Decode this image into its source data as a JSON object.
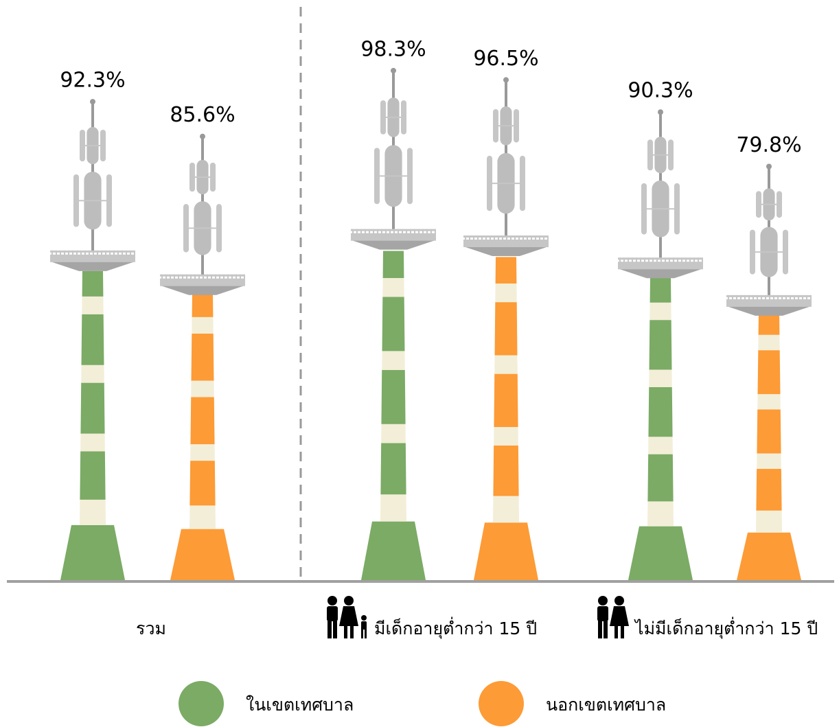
{
  "chart_data": {
    "type": "bar",
    "categories": [
      "รวม",
      "มีเด็กอายุต่ำกว่า 15 ปี",
      "ไม่มีเด็กอายุต่ำกว่า 15 ปี"
    ],
    "series": [
      {
        "name": "ในเขตเทศบาล",
        "color": "#7bab65",
        "values": [
          92.3,
          98.3,
          90.3
        ],
        "value_labels": [
          "92.3%",
          "98.3%",
          "90.3%"
        ]
      },
      {
        "name": "นอกเขตเทศบาล",
        "color": "#fd9b36",
        "values": [
          85.6,
          96.5,
          79.8
        ],
        "value_labels": [
          "85.6%",
          "96.5%",
          "79.8%"
        ]
      }
    ]
  }
}
